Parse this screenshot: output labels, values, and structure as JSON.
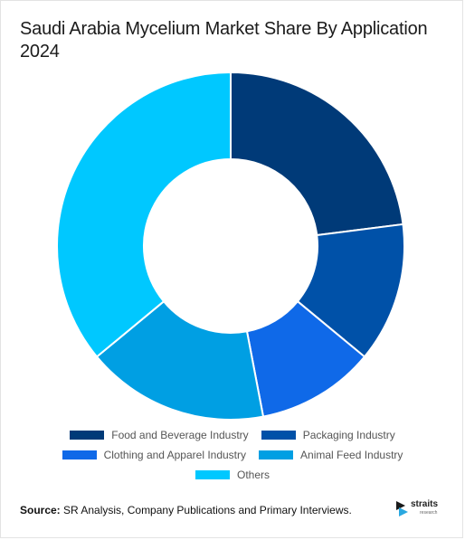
{
  "title": "Saudi Arabia Mycelium Market Share By Application 2024",
  "source_label": "Source:",
  "source_text": "SR Analysis, Company Publications and Primary Interviews.",
  "logo": {
    "name": "straits",
    "sub": "research"
  },
  "chart_data": {
    "type": "pie",
    "title": "Saudi Arabia Mycelium Market Share By Application 2024",
    "donut": true,
    "legend_position": "bottom",
    "categories": [
      "Food and Beverage Industry",
      "Packaging Industry",
      "Clothing and Apparel Industry",
      "Animal Feed Industry",
      "Others"
    ],
    "values": [
      23,
      13,
      11,
      17,
      36
    ],
    "colors": [
      "#003a78",
      "#0051a8",
      "#0f69e8",
      "#009fe3",
      "#00c8ff"
    ]
  }
}
